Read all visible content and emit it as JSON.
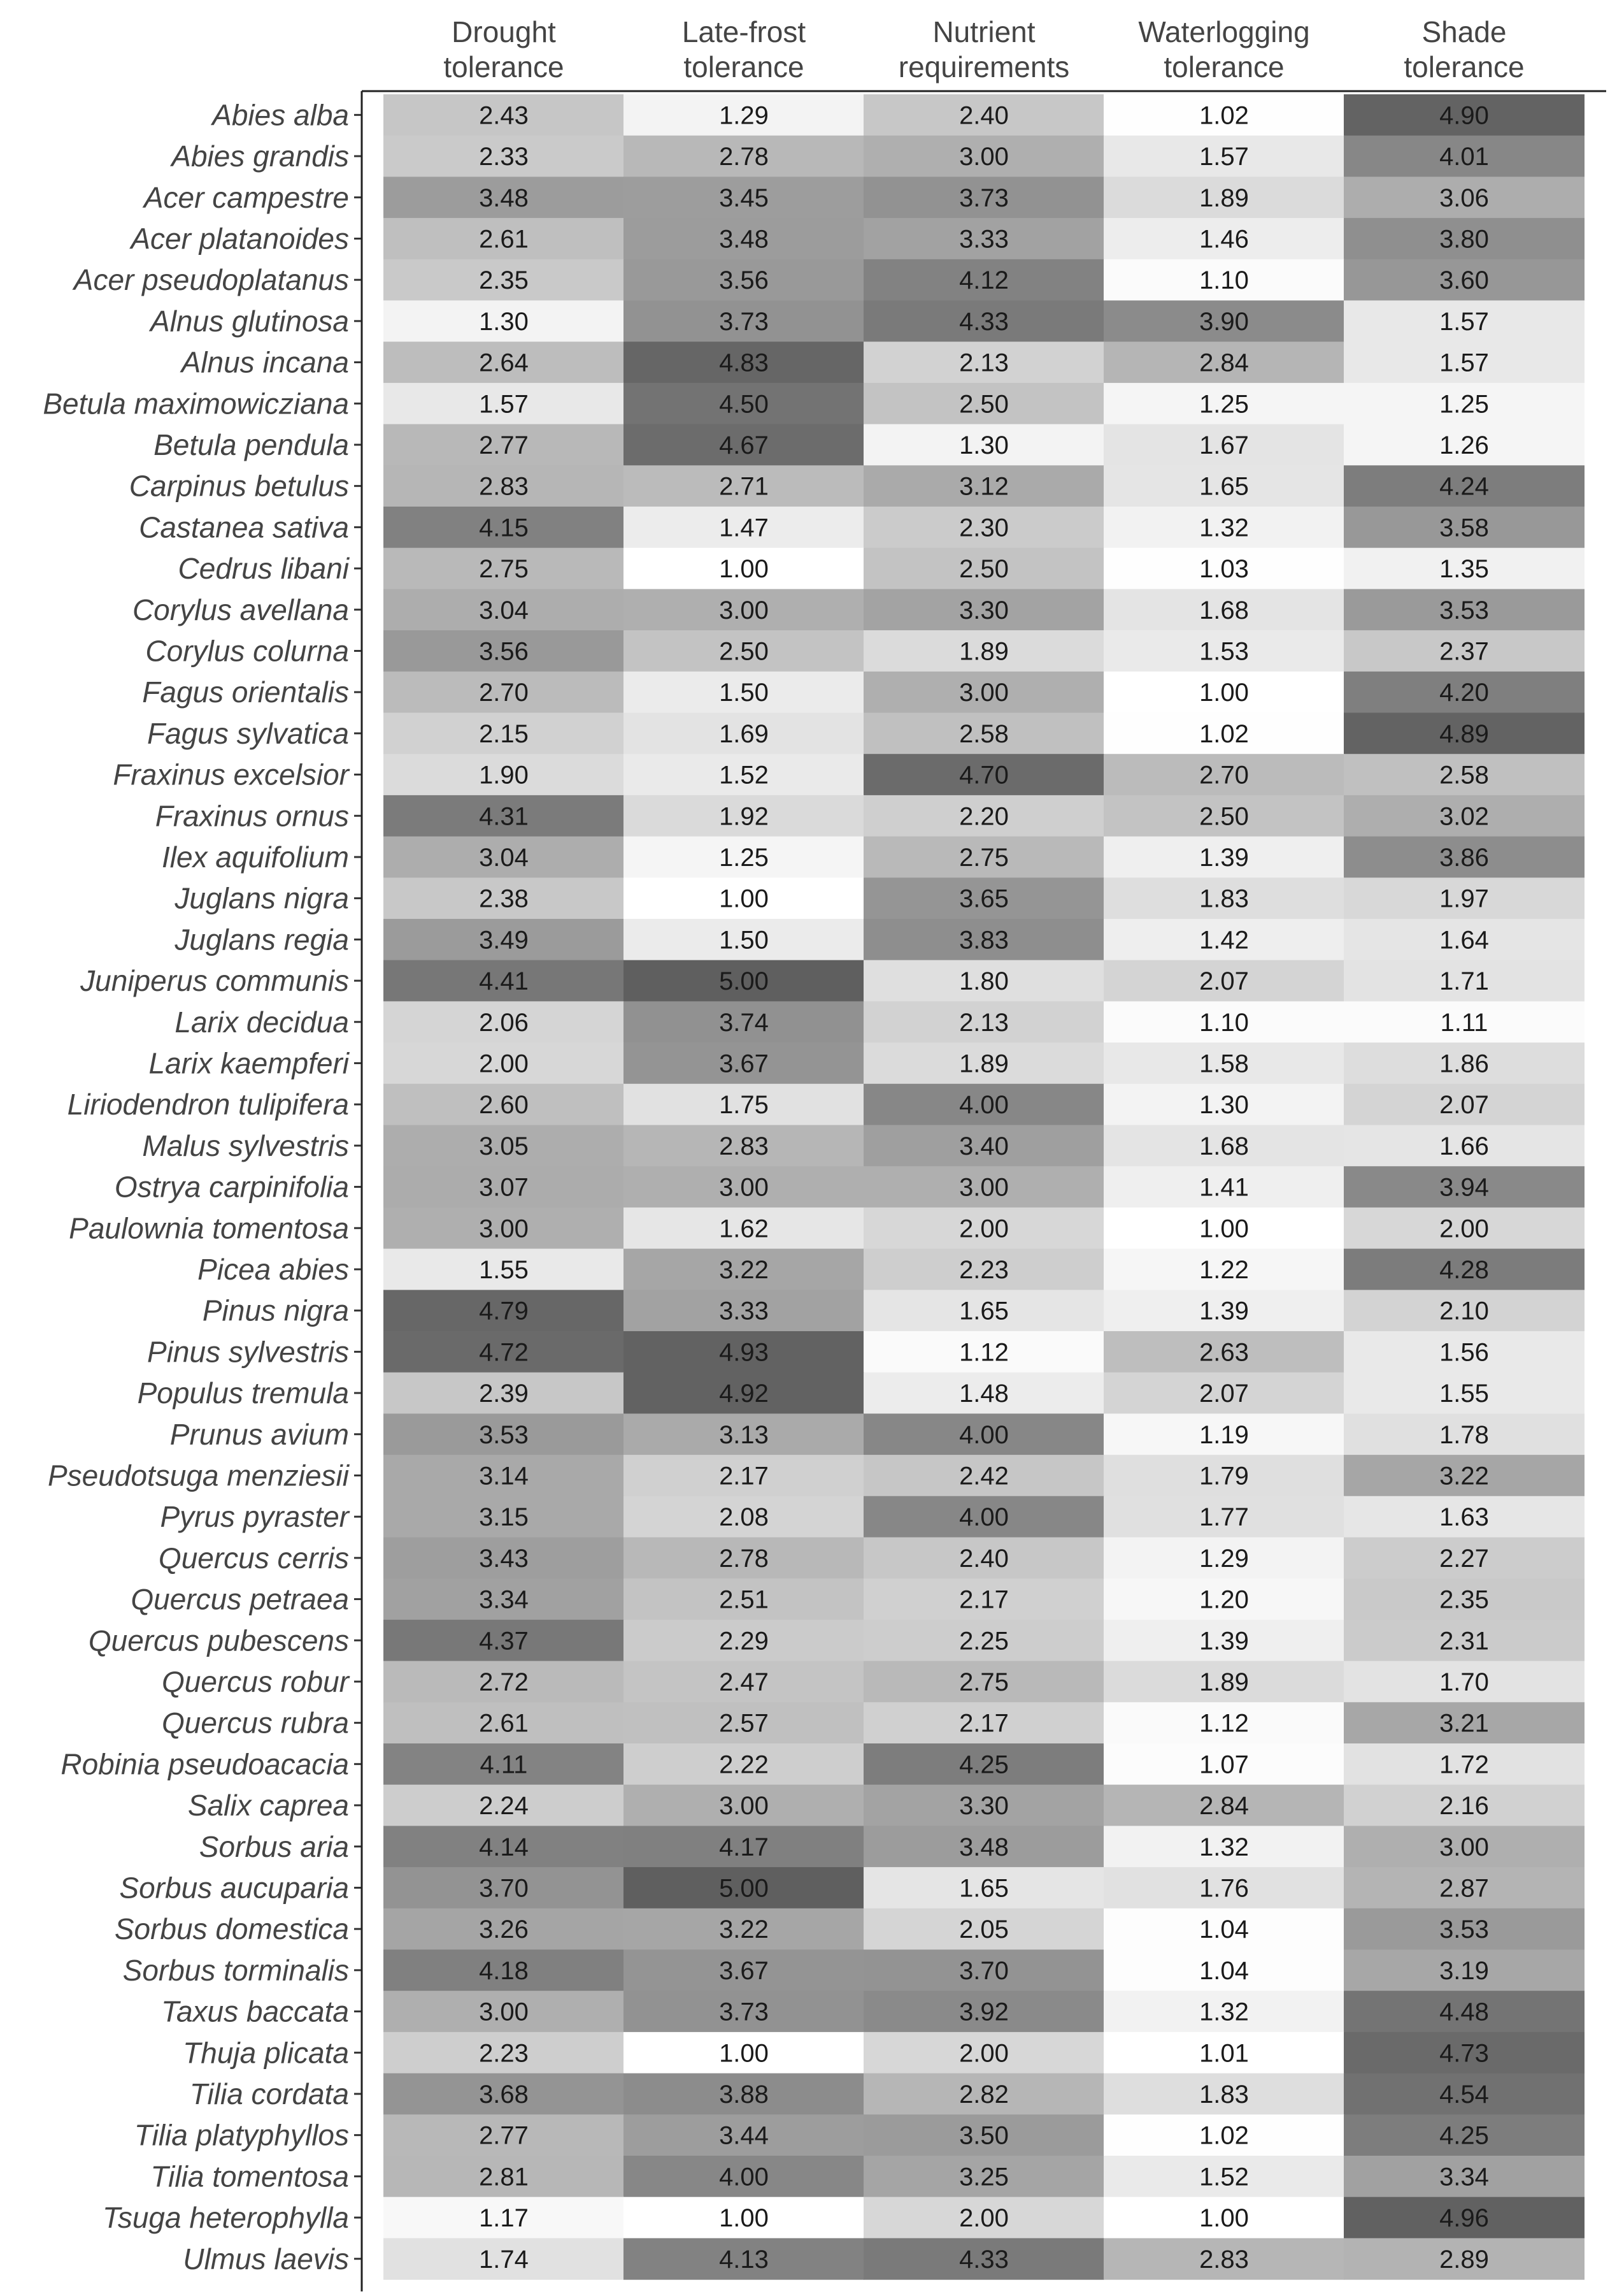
{
  "chart_data": {
    "type": "heatmap",
    "columns": [
      {
        "line1": "Drought",
        "line2": "tolerance"
      },
      {
        "line1": "Late-frost",
        "line2": "tolerance"
      },
      {
        "line1": "Nutrient",
        "line2": "requirements"
      },
      {
        "line1": "Waterlogging",
        "line2": "tolerance"
      },
      {
        "line1": "Shade",
        "line2": "tolerance"
      }
    ],
    "rows": [
      "Abies alba",
      "Abies grandis",
      "Acer campestre",
      "Acer platanoides",
      "Acer pseudoplatanus",
      "Alnus glutinosa",
      "Alnus incana",
      "Betula maximowicziana",
      "Betula pendula",
      "Carpinus betulus",
      "Castanea sativa",
      "Cedrus libani",
      "Corylus avellana",
      "Corylus colurna",
      "Fagus orientalis",
      "Fagus sylvatica",
      "Fraxinus excelsior",
      "Fraxinus ornus",
      "Ilex aquifolium",
      "Juglans nigra",
      "Juglans regia",
      "Juniperus communis",
      "Larix decidua",
      "Larix kaempferi",
      "Liriodendron tulipifera",
      "Malus sylvestris",
      "Ostrya carpinifolia",
      "Paulownia tomentosa",
      "Picea abies",
      "Pinus nigra",
      "Pinus sylvestris",
      "Populus tremula",
      "Prunus avium",
      "Pseudotsuga menziesii",
      "Pyrus pyraster",
      "Quercus cerris",
      "Quercus petraea",
      "Quercus pubescens",
      "Quercus robur",
      "Quercus rubra",
      "Robinia pseudoacacia",
      "Salix caprea",
      "Sorbus aria",
      "Sorbus aucuparia",
      "Sorbus domestica",
      "Sorbus torminalis",
      "Taxus baccata",
      "Thuja plicata",
      "Tilia cordata",
      "Tilia platyphyllos",
      "Tilia tomentosa",
      "Tsuga heterophylla",
      "Ulmus laevis"
    ],
    "values": [
      [
        "2.43",
        "1.29",
        "2.40",
        "1.02",
        "4.90"
      ],
      [
        "2.33",
        "2.78",
        "3.00",
        "1.57",
        "4.01"
      ],
      [
        "3.48",
        "3.45",
        "3.73",
        "1.89",
        "3.06"
      ],
      [
        "2.61",
        "3.48",
        "3.33",
        "1.46",
        "3.80"
      ],
      [
        "2.35",
        "3.56",
        "4.12",
        "1.10",
        "3.60"
      ],
      [
        "1.30",
        "3.73",
        "4.33",
        "3.90",
        "1.57"
      ],
      [
        "2.64",
        "4.83",
        "2.13",
        "2.84",
        "1.57"
      ],
      [
        "1.57",
        "4.50",
        "2.50",
        "1.25",
        "1.25"
      ],
      [
        "2.77",
        "4.67",
        "1.30",
        "1.67",
        "1.26"
      ],
      [
        "2.83",
        "2.71",
        "3.12",
        "1.65",
        "4.24"
      ],
      [
        "4.15",
        "1.47",
        "2.30",
        "1.32",
        "3.58"
      ],
      [
        "2.75",
        "1.00",
        "2.50",
        "1.03",
        "1.35"
      ],
      [
        "3.04",
        "3.00",
        "3.30",
        "1.68",
        "3.53"
      ],
      [
        "3.56",
        "2.50",
        "1.89",
        "1.53",
        "2.37"
      ],
      [
        "2.70",
        "1.50",
        "3.00",
        "1.00",
        "4.20"
      ],
      [
        "2.15",
        "1.69",
        "2.58",
        "1.02",
        "4.89"
      ],
      [
        "1.90",
        "1.52",
        "4.70",
        "2.70",
        "2.58"
      ],
      [
        "4.31",
        "1.92",
        "2.20",
        "2.50",
        "3.02"
      ],
      [
        "3.04",
        "1.25",
        "2.75",
        "1.39",
        "3.86"
      ],
      [
        "2.38",
        "1.00",
        "3.65",
        "1.83",
        "1.97"
      ],
      [
        "3.49",
        "1.50",
        "3.83",
        "1.42",
        "1.64"
      ],
      [
        "4.41",
        "5.00",
        "1.80",
        "2.07",
        "1.71"
      ],
      [
        "2.06",
        "3.74",
        "2.13",
        "1.10",
        "1.11"
      ],
      [
        "2.00",
        "3.67",
        "1.89",
        "1.58",
        "1.86"
      ],
      [
        "2.60",
        "1.75",
        "4.00",
        "1.30",
        "2.07"
      ],
      [
        "3.05",
        "2.83",
        "3.40",
        "1.68",
        "1.66"
      ],
      [
        "3.07",
        "3.00",
        "3.00",
        "1.41",
        "3.94"
      ],
      [
        "3.00",
        "1.62",
        "2.00",
        "1.00",
        "2.00"
      ],
      [
        "1.55",
        "3.22",
        "2.23",
        "1.22",
        "4.28"
      ],
      [
        "4.79",
        "3.33",
        "1.65",
        "1.39",
        "2.10"
      ],
      [
        "4.72",
        "4.93",
        "1.12",
        "2.63",
        "1.56"
      ],
      [
        "2.39",
        "4.92",
        "1.48",
        "2.07",
        "1.55"
      ],
      [
        "3.53",
        "3.13",
        "4.00",
        "1.19",
        "1.78"
      ],
      [
        "3.14",
        "2.17",
        "2.42",
        "1.79",
        "3.22"
      ],
      [
        "3.15",
        "2.08",
        "4.00",
        "1.77",
        "1.63"
      ],
      [
        "3.43",
        "2.78",
        "2.40",
        "1.29",
        "2.27"
      ],
      [
        "3.34",
        "2.51",
        "2.17",
        "1.20",
        "2.35"
      ],
      [
        "4.37",
        "2.29",
        "2.25",
        "1.39",
        "2.31"
      ],
      [
        "2.72",
        "2.47",
        "2.75",
        "1.89",
        "1.70"
      ],
      [
        "2.61",
        "2.57",
        "2.17",
        "1.12",
        "3.21"
      ],
      [
        "4.11",
        "2.22",
        "4.25",
        "1.07",
        "1.72"
      ],
      [
        "2.24",
        "3.00",
        "3.30",
        "2.84",
        "2.16"
      ],
      [
        "4.14",
        "4.17",
        "3.48",
        "1.32",
        "3.00"
      ],
      [
        "3.70",
        "5.00",
        "1.65",
        "1.76",
        "2.87"
      ],
      [
        "3.26",
        "3.22",
        "2.05",
        "1.04",
        "3.53"
      ],
      [
        "4.18",
        "3.67",
        "3.70",
        "1.04",
        "3.19"
      ],
      [
        "3.00",
        "3.73",
        "3.92",
        "1.32",
        "4.48"
      ],
      [
        "2.23",
        "1.00",
        "2.00",
        "1.01",
        "4.73"
      ],
      [
        "3.68",
        "3.88",
        "2.82",
        "1.83",
        "4.54"
      ],
      [
        "2.77",
        "3.44",
        "3.50",
        "1.02",
        "4.25"
      ],
      [
        "2.81",
        "4.00",
        "3.25",
        "1.52",
        "3.34"
      ],
      [
        "1.17",
        "1.00",
        "2.00",
        "1.00",
        "4.96"
      ],
      [
        "1.74",
        "4.13",
        "4.33",
        "2.83",
        "2.89"
      ]
    ],
    "value_range": [
      1,
      5
    ],
    "color_scale": {
      "low": "#ffffff",
      "high": "#5f5f5f"
    },
    "legend": "none",
    "grid": false
  }
}
